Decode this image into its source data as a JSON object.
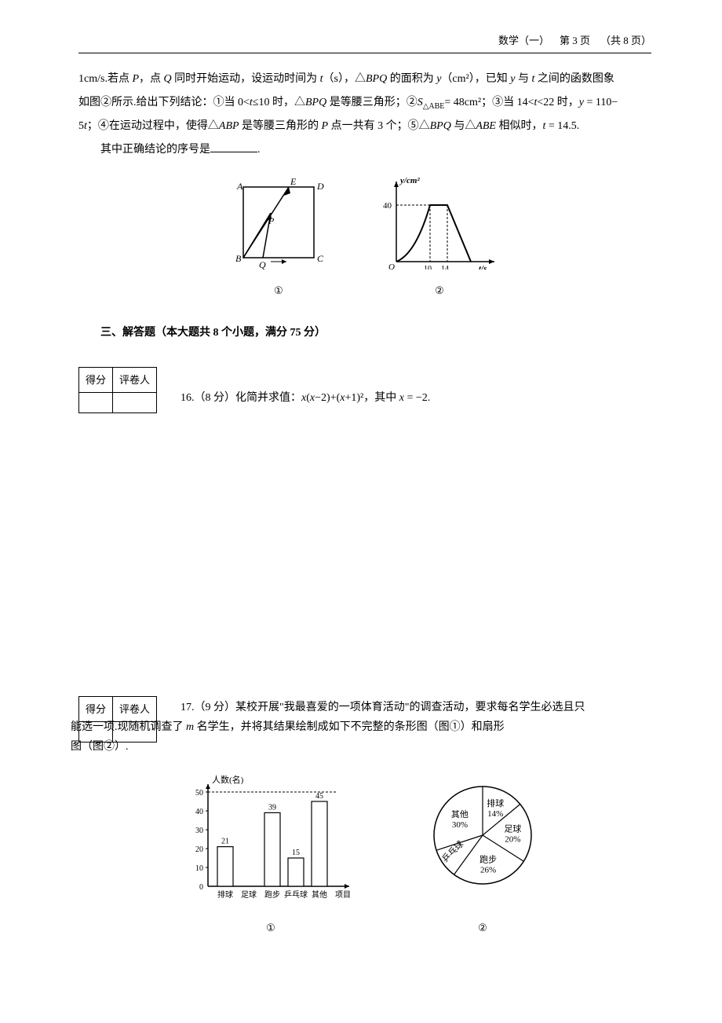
{
  "header": {
    "subject": "数学（一）",
    "page_current": "第 3 页",
    "page_total": "（共 8 页）"
  },
  "problem15": {
    "line1_prefix": "1cm/s.若点 ",
    "line1_p": "P",
    "line1_mid1": "，点 ",
    "line1_q": "Q",
    "line1_mid2": " 同时开始运动，设运动时间为 ",
    "line1_t": "t",
    "line1_mid3": "（s），△",
    "line1_bpq": "BPQ",
    "line1_mid4": " 的面积为 ",
    "line1_y": "y",
    "line1_mid5": "（cm²），已知 ",
    "line1_y2": "y",
    "line1_mid6": " 与 ",
    "line1_t2": "t",
    "line1_end": " 之间的函数图象",
    "line2_start": "如图②所示.给出下列结论：①当 0<",
    "line2_t1": "t",
    "line2_mid1": "≤10 时，△",
    "line2_bpq": "BPQ",
    "line2_mid2": " 是等腰三角形；②",
    "line2_s": "S",
    "line2_sub": "△ABE",
    "line2_mid3": "= 48cm²；③当 14<",
    "line2_t2": "t",
    "line2_mid4": "<22 时，",
    "line2_y": "y",
    "line2_end": " = 110−",
    "line3_start": "5",
    "line3_t": "t",
    "line3_mid1": "；④在运动过程中，使得△",
    "line3_abp": "ABP",
    "line3_mid2": " 是等腰三角形的 ",
    "line3_p": "P",
    "line3_mid3": " 点一共有 3 个；⑤△",
    "line3_bpq": "BPQ",
    "line3_mid4": " 与△",
    "line3_abe": "ABE",
    "line3_mid5": " 相似时，",
    "line3_t2": "t",
    "line3_end": " = 14.5.",
    "line4": "其中正确结论的序号是",
    "fig1": {
      "A": "A",
      "B": "B",
      "C": "C",
      "D": "D",
      "E": "E",
      "P": "P",
      "Q": "Q",
      "label": "①"
    },
    "fig2": {
      "ylabel": "y/cm²",
      "y40": "40",
      "O": "O",
      "x10": "10",
      "x14": "14",
      "xlabel": "t/s",
      "label": "②"
    }
  },
  "section3": {
    "title": "三、解答题（本大题共 8 个小题，满分 75 分）"
  },
  "scorebox": {
    "score": "得分",
    "grader": "评卷人"
  },
  "problem16": {
    "text_prefix": "16.（8 分）化简并求值：",
    "expr": "x",
    "expr_mid1": "(",
    "expr2": "x",
    "expr_mid2": "−2)+(",
    "expr3": "x",
    "expr_mid3": "+1)²，其中 ",
    "expr4": "x",
    "expr_end": " = −2."
  },
  "problem17": {
    "line1": "17.（9 分）某校开展\"我最喜爱的一项体育活动\"的调查活动，要求每名学生必选且只",
    "line2_start": "能选一项.现随机调查了 ",
    "line2_m": "m",
    "line2_end": " 名学生，并将其结果绘制成如下不完整的条形图（图①）和扇形",
    "line3": "图（图②）.",
    "bar": {
      "ylabel": "人数(名)",
      "yticks": [
        "0",
        "10",
        "20",
        "30",
        "40",
        "50"
      ],
      "categories": [
        "排球",
        "足球",
        "跑步",
        "乒乓球",
        "其他",
        "项目"
      ],
      "values": [
        21,
        null,
        39,
        15,
        45
      ],
      "value_labels": [
        "21",
        "",
        "39",
        "15",
        "45"
      ],
      "bar_color": "#ffffff",
      "border_color": "#000000",
      "dashed_guide": 50,
      "label": "①"
    },
    "pie": {
      "slices": [
        {
          "name": "排球",
          "pct": "14%",
          "start": -90,
          "end": -39.6
        },
        {
          "name": "足球",
          "pct": "20%",
          "start": -39.6,
          "end": 32.4
        },
        {
          "name": "跑步",
          "pct": "26%",
          "start": 32.4,
          "end": 126
        },
        {
          "name": "乒乓球",
          "pct": "",
          "start": 126,
          "end": 162
        },
        {
          "name": "其他",
          "pct": "30%",
          "start": 162,
          "end": 270
        }
      ],
      "label": "②"
    }
  }
}
